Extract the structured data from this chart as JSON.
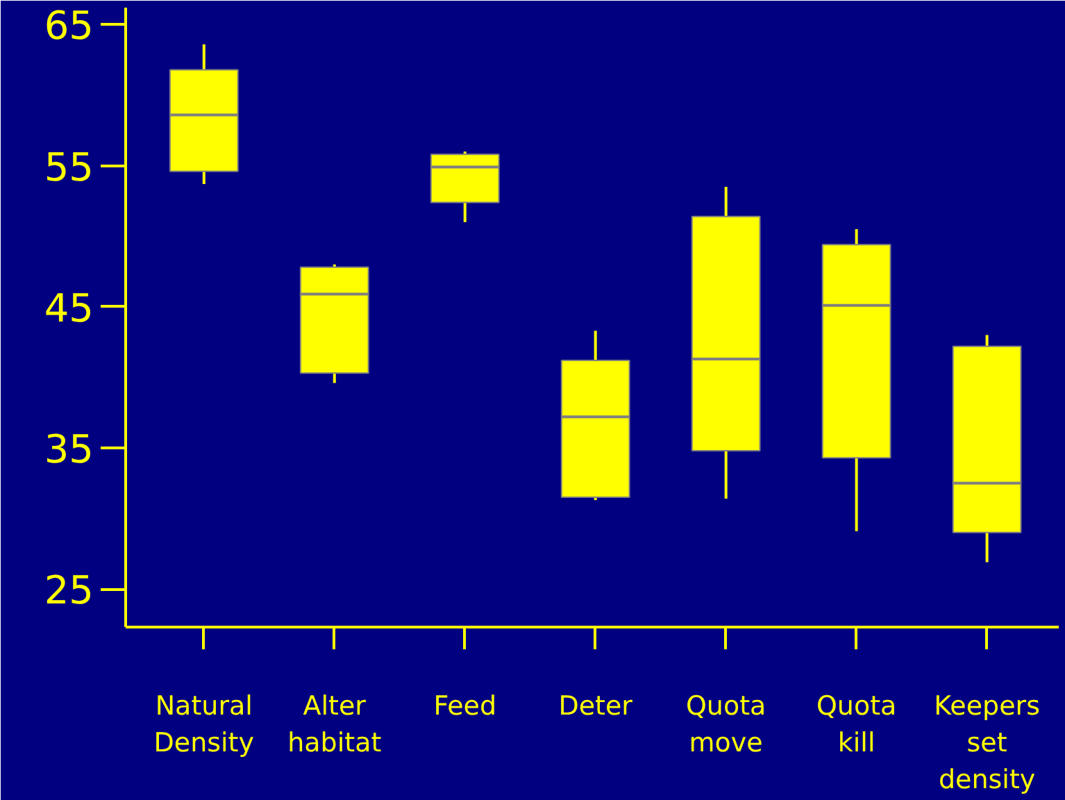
{
  "chart_data": {
    "type": "box",
    "categories": [
      "Natural\nDensity",
      "Alter\nhabitat",
      "Feed",
      "Deter",
      "Quota\nmove",
      "Quota\nkill",
      "Keepers\nset\ndensity"
    ],
    "color": "#ffff00",
    "boxes": [
      {
        "low": 53.7,
        "q1": 54.6,
        "median": 58.6,
        "q3": 61.8,
        "high": 63.6
      },
      {
        "low": 39.6,
        "q1": 40.3,
        "median": 45.9,
        "q3": 47.8,
        "high": 48.0
      },
      {
        "low": 51.0,
        "q1": 52.4,
        "median": 54.9,
        "q3": 55.8,
        "high": 56.0
      },
      {
        "low": 31.3,
        "q1": 31.5,
        "median": 37.2,
        "q3": 41.2,
        "high": 43.3
      },
      {
        "low": 31.4,
        "q1": 34.8,
        "median": 41.3,
        "q3": 51.4,
        "high": 53.5
      },
      {
        "low": 29.1,
        "q1": 34.3,
        "median": 45.1,
        "q3": 49.4,
        "high": 50.5
      },
      {
        "low": 26.9,
        "q1": 29.0,
        "median": 32.5,
        "q3": 42.2,
        "high": 43.0
      }
    ],
    "ylim": [
      22.3,
      66.2
    ],
    "yticks": [
      25,
      35,
      45,
      55,
      65
    ],
    "grid": false
  }
}
